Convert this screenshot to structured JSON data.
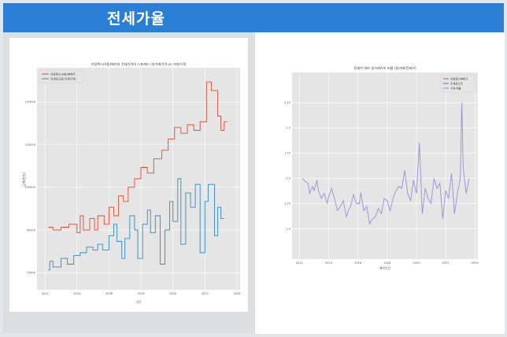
{
  "header": {
    "title": "전세가율"
  },
  "colors": {
    "header_bg": "#2a7fd4",
    "plot_bg": "#e5e5e5",
    "series_red": "#e24a33",
    "series_blue": "#348abd",
    "series_purple": "#988ed5"
  },
  "chart_data": [
    {
      "type": "line",
      "title": "아일렉스(A동)매가와 전세가격의 스프레드 (실거래가격 vs 거래가격)",
      "xlabel": "기간",
      "ylabel": "금액(만원)",
      "xlim": [
        2011.5,
        2024.2
      ],
      "ylim": [
        69000,
        147000
      ],
      "grid": true,
      "legend_position": "top-left",
      "x_ticks": [
        "2012",
        "2014",
        "2016",
        "2018",
        "2020",
        "2022",
        "2024"
      ],
      "y_ticks": [
        "75000",
        "90000",
        "105000",
        "120000",
        "135000"
      ],
      "series": [
        {
          "name": "아일렉스(A동)매매가",
          "color": "#e24a33",
          "points": [
            [
              2012.2,
              91000
            ],
            [
              2012.5,
              91000
            ],
            [
              2012.5,
              90000
            ],
            [
              2013.0,
              90000
            ],
            [
              2013.0,
              91000
            ],
            [
              2013.5,
              91000
            ],
            [
              2013.5,
              92000
            ],
            [
              2014.0,
              92000
            ],
            [
              2014.0,
              89000
            ],
            [
              2014.2,
              89000
            ],
            [
              2014.2,
              95000
            ],
            [
              2014.4,
              95000
            ],
            [
              2014.4,
              90000
            ],
            [
              2014.8,
              90000
            ],
            [
              2014.8,
              94000
            ],
            [
              2015.1,
              94000
            ],
            [
              2015.1,
              90000
            ],
            [
              2015.3,
              90000
            ],
            [
              2015.3,
              95000
            ],
            [
              2015.7,
              95000
            ],
            [
              2015.7,
              92000
            ],
            [
              2016.0,
              92000
            ],
            [
              2016.0,
              98000
            ],
            [
              2016.3,
              98000
            ],
            [
              2016.3,
              95000
            ],
            [
              2016.6,
              95000
            ],
            [
              2016.6,
              102000
            ],
            [
              2016.9,
              102000
            ],
            [
              2016.9,
              100000
            ],
            [
              2017.2,
              100000
            ],
            [
              2017.2,
              105000
            ],
            [
              2017.6,
              105000
            ],
            [
              2017.6,
              108000
            ],
            [
              2018.0,
              108000
            ],
            [
              2018.0,
              112000
            ],
            [
              2018.4,
              112000
            ],
            [
              2018.4,
              110000
            ],
            [
              2018.8,
              110000
            ],
            [
              2018.8,
              115000
            ],
            [
              2019.3,
              115000
            ],
            [
              2019.3,
              118000
            ],
            [
              2019.7,
              118000
            ],
            [
              2019.7,
              122000
            ],
            [
              2020.1,
              122000
            ],
            [
              2020.1,
              126000
            ],
            [
              2020.5,
              126000
            ],
            [
              2020.5,
              124000
            ],
            [
              2020.9,
              124000
            ],
            [
              2020.9,
              127000
            ],
            [
              2021.3,
              127000
            ],
            [
              2021.3,
              125000
            ],
            [
              2021.7,
              125000
            ],
            [
              2021.7,
              128000
            ],
            [
              2022.1,
              128000
            ],
            [
              2022.1,
              142000
            ],
            [
              2022.4,
              142000
            ],
            [
              2022.4,
              139000
            ],
            [
              2022.8,
              139000
            ],
            [
              2022.8,
              130000
            ],
            [
              2023.0,
              130000
            ],
            [
              2023.0,
              125000
            ],
            [
              2023.2,
              125000
            ],
            [
              2023.2,
              128000
            ],
            [
              2023.4,
              128000
            ]
          ]
        },
        {
          "name": "전세최고값(거래가격)",
          "color": "#348abd",
          "points": [
            [
              2012.2,
              76000
            ],
            [
              2012.3,
              76000
            ],
            [
              2012.3,
              79000
            ],
            [
              2012.5,
              79000
            ],
            [
              2012.5,
              77000
            ],
            [
              2013.0,
              77000
            ],
            [
              2013.0,
              80000
            ],
            [
              2013.4,
              80000
            ],
            [
              2013.4,
              78000
            ],
            [
              2013.8,
              78000
            ],
            [
              2013.8,
              81000
            ],
            [
              2014.2,
              81000
            ],
            [
              2014.2,
              82000
            ],
            [
              2014.6,
              82000
            ],
            [
              2014.6,
              84000
            ],
            [
              2015.0,
              84000
            ],
            [
              2015.0,
              83000
            ],
            [
              2015.3,
              83000
            ],
            [
              2015.3,
              85000
            ],
            [
              2015.6,
              85000
            ],
            [
              2015.6,
              83000
            ],
            [
              2016.0,
              83000
            ],
            [
              2016.0,
              88000
            ],
            [
              2016.3,
              88000
            ],
            [
              2016.3,
              92000
            ],
            [
              2016.5,
              92000
            ],
            [
              2016.5,
              86000
            ],
            [
              2016.8,
              86000
            ],
            [
              2016.8,
              80000
            ],
            [
              2017.0,
              80000
            ],
            [
              2017.0,
              87000
            ],
            [
              2017.3,
              87000
            ],
            [
              2017.3,
              95000
            ],
            [
              2017.6,
              95000
            ],
            [
              2017.6,
              90000
            ],
            [
              2017.8,
              90000
            ],
            [
              2017.8,
              80000
            ],
            [
              2018.1,
              80000
            ],
            [
              2018.1,
              92000
            ],
            [
              2018.4,
              92000
            ],
            [
              2018.4,
              97000
            ],
            [
              2018.6,
              97000
            ],
            [
              2018.6,
              89000
            ],
            [
              2018.9,
              89000
            ],
            [
              2018.9,
              95000
            ],
            [
              2019.2,
              95000
            ],
            [
              2019.2,
              78000
            ],
            [
              2019.5,
              78000
            ],
            [
              2019.5,
              90000
            ],
            [
              2019.8,
              90000
            ],
            [
              2019.8,
              100000
            ],
            [
              2020.0,
              100000
            ],
            [
              2020.0,
              93000
            ],
            [
              2020.3,
              93000
            ],
            [
              2020.3,
              108000
            ],
            [
              2020.5,
              108000
            ],
            [
              2020.5,
              85000
            ],
            [
              2020.8,
              85000
            ],
            [
              2020.8,
              103000
            ],
            [
              2021.1,
              103000
            ],
            [
              2021.1,
              98000
            ],
            [
              2021.4,
              98000
            ],
            [
              2021.4,
              106000
            ],
            [
              2021.7,
              106000
            ],
            [
              2021.7,
              82000
            ],
            [
              2022.0,
              82000
            ],
            [
              2022.0,
              100000
            ],
            [
              2022.2,
              100000
            ],
            [
              2022.2,
              106000
            ],
            [
              2022.6,
              106000
            ],
            [
              2022.6,
              88000
            ],
            [
              2022.8,
              88000
            ],
            [
              2022.8,
              98000
            ],
            [
              2023.0,
              98000
            ],
            [
              2023.0,
              94000
            ],
            [
              2023.2,
              94000
            ]
          ]
        }
      ]
    },
    {
      "type": "line",
      "title": "전세가 대비 실거래가의 비율 (실거래/전세가)",
      "xlabel": "계약기간",
      "ylabel": "",
      "xlim": [
        2011.5,
        2024.2
      ],
      "ylim": [
        0.7,
        2.55
      ],
      "grid": true,
      "legend_position": "top-right",
      "x_ticks": [
        "2012",
        "2014",
        "2016",
        "2018",
        "2020",
        "2022",
        "2024"
      ],
      "y_ticks": [
        "1.0",
        "1.25",
        "1.5",
        "1.75",
        "2.0",
        "2.25"
      ],
      "legend_entries": [
        "아일렉스매매가",
        "전세최고가",
        "가격 비율"
      ],
      "legend_colors": [
        "#e24a33",
        "#348abd",
        "#988ed5"
      ],
      "series": [
        {
          "name": "가격 비율",
          "color": "#988ed5",
          "points": [
            [
              2012.2,
              1.5
            ],
            [
              2012.4,
              1.47
            ],
            [
              2012.6,
              1.45
            ],
            [
              2012.7,
              1.35
            ],
            [
              2012.9,
              1.42
            ],
            [
              2013.0,
              1.38
            ],
            [
              2013.2,
              1.48
            ],
            [
              2013.3,
              1.38
            ],
            [
              2013.5,
              1.3
            ],
            [
              2013.7,
              1.35
            ],
            [
              2013.9,
              1.25
            ],
            [
              2014.0,
              1.32
            ],
            [
              2014.2,
              1.4
            ],
            [
              2014.4,
              1.3
            ],
            [
              2014.6,
              1.18
            ],
            [
              2014.8,
              1.22
            ],
            [
              2015.0,
              1.28
            ],
            [
              2015.2,
              1.12
            ],
            [
              2015.4,
              1.2
            ],
            [
              2015.5,
              1.22
            ],
            [
              2015.7,
              1.34
            ],
            [
              2015.9,
              1.25
            ],
            [
              2016.1,
              1.25
            ],
            [
              2016.2,
              1.36
            ],
            [
              2016.4,
              1.18
            ],
            [
              2016.6,
              1.22
            ],
            [
              2016.8,
              1.05
            ],
            [
              2017.0,
              1.1
            ],
            [
              2017.2,
              1.12
            ],
            [
              2017.4,
              1.2
            ],
            [
              2017.6,
              1.15
            ],
            [
              2017.8,
              1.3
            ],
            [
              2018.0,
              1.28
            ],
            [
              2018.2,
              1.18
            ],
            [
              2018.4,
              1.3
            ],
            [
              2018.6,
              1.38
            ],
            [
              2018.8,
              1.42
            ],
            [
              2019.0,
              1.4
            ],
            [
              2019.2,
              1.58
            ],
            [
              2019.4,
              1.35
            ],
            [
              2019.6,
              1.28
            ],
            [
              2019.8,
              1.48
            ],
            [
              2020.0,
              1.35
            ],
            [
              2020.2,
              1.85
            ],
            [
              2020.4,
              1.15
            ],
            [
              2020.6,
              1.4
            ],
            [
              2020.8,
              1.3
            ],
            [
              2021.0,
              1.25
            ],
            [
              2021.2,
              1.5
            ],
            [
              2021.4,
              1.4
            ],
            [
              2021.6,
              1.45
            ],
            [
              2021.8,
              1.1
            ],
            [
              2022.0,
              1.38
            ],
            [
              2022.2,
              1.3
            ],
            [
              2022.4,
              1.55
            ],
            [
              2022.6,
              1.15
            ],
            [
              2022.8,
              1.35
            ],
            [
              2023.0,
              1.5
            ],
            [
              2023.1,
              2.25
            ],
            [
              2023.2,
              1.6
            ],
            [
              2023.4,
              1.35
            ],
            [
              2023.6,
              1.5
            ]
          ]
        }
      ]
    }
  ]
}
